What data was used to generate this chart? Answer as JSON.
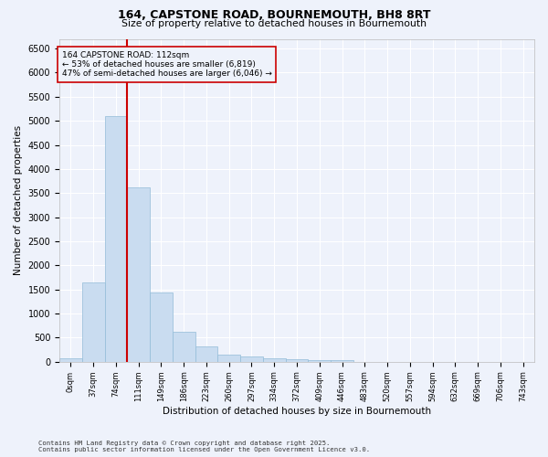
{
  "title1": "164, CAPSTONE ROAD, BOURNEMOUTH, BH8 8RT",
  "title2": "Size of property relative to detached houses in Bournemouth",
  "xlabel": "Distribution of detached houses by size in Bournemouth",
  "ylabel": "Number of detached properties",
  "footnote1": "Contains HM Land Registry data © Crown copyright and database right 2025.",
  "footnote2": "Contains public sector information licensed under the Open Government Licence v3.0.",
  "annotation_title": "164 CAPSTONE ROAD: 112sqm",
  "annotation_line1": "← 53% of detached houses are smaller (6,819)",
  "annotation_line2": "47% of semi-detached houses are larger (6,046) →",
  "bar_labels": [
    "0sqm",
    "37sqm",
    "74sqm",
    "111sqm",
    "149sqm",
    "186sqm",
    "223sqm",
    "260sqm",
    "297sqm",
    "334sqm",
    "372sqm",
    "409sqm",
    "446sqm",
    "483sqm",
    "520sqm",
    "557sqm",
    "594sqm",
    "632sqm",
    "669sqm",
    "706sqm",
    "743sqm"
  ],
  "bar_values": [
    75,
    1650,
    5100,
    3620,
    1430,
    620,
    310,
    155,
    110,
    80,
    55,
    40,
    30,
    0,
    0,
    0,
    0,
    0,
    0,
    0,
    0
  ],
  "bar_color": "#c9dcf0",
  "bar_edge_color": "#92bcd8",
  "red_line_color": "#cc0000",
  "background_color": "#eef2fb",
  "grid_color": "#ffffff",
  "ylim": [
    0,
    6700
  ],
  "yticks": [
    0,
    500,
    1000,
    1500,
    2000,
    2500,
    3000,
    3500,
    4000,
    4500,
    5000,
    5500,
    6000,
    6500
  ]
}
